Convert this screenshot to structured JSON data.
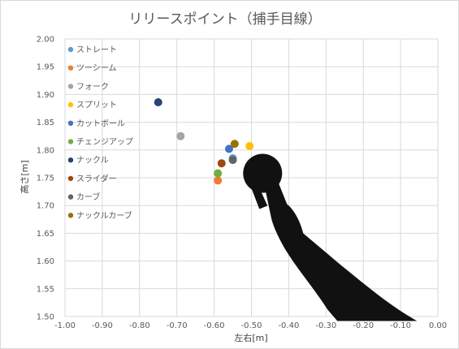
{
  "chart_data": {
    "type": "scatter",
    "title": "リリースポイント（捕手目線）",
    "xlabel": "左右[m]",
    "ylabel": "高さ[m]",
    "xlim": [
      -1.0,
      0.0
    ],
    "ylim": [
      1.5,
      2.0
    ],
    "x_ticks": [
      "-1.00",
      "-0.90",
      "-0.80",
      "-0.70",
      "-0.60",
      "-0.50",
      "-0.40",
      "-0.30",
      "-0.20",
      "-0.10",
      "0.00"
    ],
    "y_ticks": [
      "2.00",
      "1.95",
      "1.90",
      "1.85",
      "1.80",
      "1.75",
      "1.70",
      "1.65",
      "1.60",
      "1.55",
      "1.50"
    ],
    "grid": true,
    "legend_position": "top-left",
    "series": [
      {
        "name": "ストレート",
        "color": "#5B9BD5",
        "points": [
          [
            -0.55,
            1.785
          ]
        ]
      },
      {
        "name": "ツーシーム",
        "color": "#ED7D31",
        "points": [
          [
            -0.59,
            1.745
          ]
        ]
      },
      {
        "name": "フォーク",
        "color": "#A5A5A5",
        "points": [
          [
            -0.69,
            1.825
          ]
        ]
      },
      {
        "name": "スプリット",
        "color": "#FFC000",
        "points": [
          [
            -0.505,
            1.807
          ]
        ]
      },
      {
        "name": "カットボール",
        "color": "#4472C4",
        "points": [
          [
            -0.56,
            1.802
          ]
        ]
      },
      {
        "name": "チェンジアップ",
        "color": "#70AD47",
        "points": [
          [
            -0.59,
            1.758
          ]
        ]
      },
      {
        "name": "ナックル",
        "color": "#264478",
        "points": [
          [
            -0.75,
            1.886
          ]
        ]
      },
      {
        "name": "スライダー",
        "color": "#9E480E",
        "points": [
          [
            -0.58,
            1.776
          ]
        ]
      },
      {
        "name": "カーブ",
        "color": "#636363",
        "points": [
          [
            -0.55,
            1.782
          ]
        ]
      },
      {
        "name": "ナックルカーブ",
        "color": "#997300",
        "points": [
          [
            -0.545,
            1.811
          ]
        ]
      }
    ],
    "decoration": {
      "ball_center": [
        -0.47,
        1.758
      ],
      "color": "#111111"
    }
  }
}
